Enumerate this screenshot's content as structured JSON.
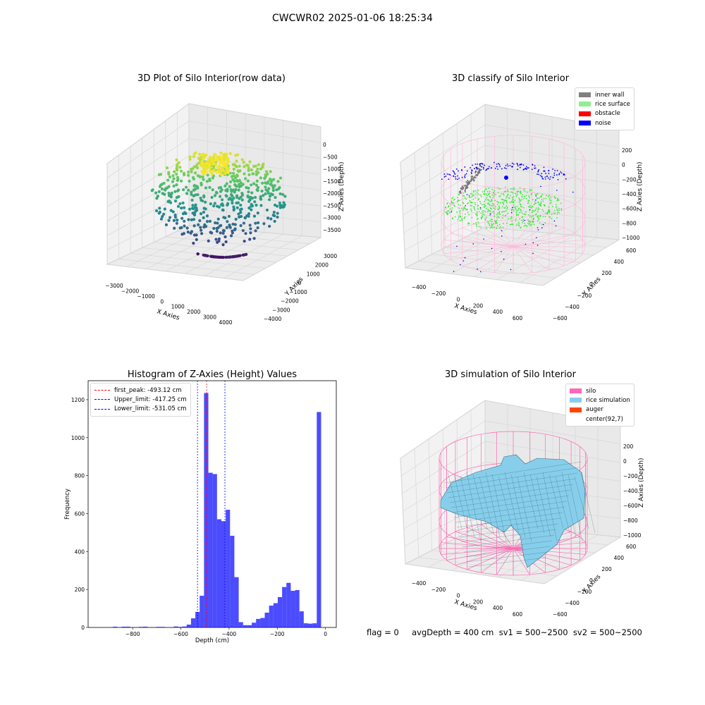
{
  "figure": {
    "suptitle": "CWCWR02 2025-01-06 18:25:34",
    "footer": "flag = 0     avgDepth = 400 cm  sv1 = 500~2500  sv2 = 500~2500"
  },
  "chart_data": [
    {
      "type": "scatter",
      "title": "3D Plot of Silo Interior(row data)",
      "xlabel": "X Axies",
      "ylabel": "Y Axies",
      "zlabel": "Z Axies (Depth)",
      "x_ticks": [
        "−3000",
        "−2000",
        "−1000",
        "0",
        "1000",
        "2000",
        "3000",
        "4000"
      ],
      "y_ticks": [
        "−4000",
        "−3000",
        "−2000",
        "−1000",
        "0",
        "1000",
        "2000",
        "3000"
      ],
      "z_ticks": [
        "0",
        "−500",
        "−1000",
        "−1500",
        "−2000",
        "−2500",
        "−3000",
        "−3500"
      ],
      "colormap": "viridis"
    },
    {
      "type": "scatter",
      "title": "3D classify of Silo Interior",
      "xlabel": "X Axies",
      "ylabel": "Y Axies",
      "zlabel": "Z Axies (Depth)",
      "x_ticks": [
        "−400",
        "−200",
        "0",
        "200",
        "400",
        "600"
      ],
      "y_ticks": [
        "−600",
        "−400",
        "−200",
        "0",
        "200",
        "400",
        "600"
      ],
      "z_ticks": [
        "200",
        "0",
        "−200",
        "−400",
        "−600",
        "−800",
        "−1000"
      ],
      "legend_position": "top-right",
      "legend": [
        {
          "label": "inner wall",
          "color": "#808080"
        },
        {
          "label": "rice surface",
          "color": "#90ee90"
        },
        {
          "label": "obstacle",
          "color": "#ff0000"
        },
        {
          "label": "noise",
          "color": "#0000ff"
        }
      ]
    },
    {
      "type": "bar",
      "title": "Histogram of Z-Axies (Height) Values",
      "xlabel": "Depth (cm)",
      "ylabel": "Frequency",
      "xlim": [
        -985,
        45
      ],
      "ylim": [
        0,
        1300
      ],
      "x_ticks": [
        -800,
        -600,
        -400,
        -200,
        0
      ],
      "x_tick_labels": [
        "−800",
        "−600",
        "−400",
        "−200",
        "0"
      ],
      "y_ticks": [
        0,
        200,
        400,
        600,
        800,
        1000,
        1200
      ],
      "y_tick_labels": [
        "0",
        "200",
        "400",
        "600",
        "800",
        "1000",
        "1200"
      ],
      "bar_color": "#0000ff",
      "bin_width": 18,
      "bins_left": [
        -900,
        -882,
        -864,
        -846,
        -828,
        -810,
        -792,
        -774,
        -756,
        -738,
        -720,
        -702,
        -684,
        -666,
        -648,
        -630,
        -612,
        -594,
        -576,
        -558,
        -540,
        -522,
        -504,
        -486,
        -468,
        -450,
        -432,
        -414,
        -396,
        -378,
        -360,
        -342,
        -324,
        -306,
        -288,
        -270,
        -252,
        -234,
        -216,
        -198,
        -180,
        -162,
        -144,
        -126,
        -108,
        -90,
        -72,
        -54,
        -36,
        -18
      ],
      "values": [
        0,
        4,
        0,
        4,
        4,
        0,
        0,
        3,
        4,
        0,
        0,
        3,
        3,
        0,
        0,
        5,
        3,
        5,
        15,
        48,
        82,
        167,
        1235,
        815,
        808,
        570,
        560,
        620,
        483,
        265,
        28,
        12,
        12,
        25,
        45,
        50,
        78,
        115,
        128,
        160,
        213,
        235,
        193,
        197,
        85,
        22,
        20,
        22,
        1135,
        0
      ],
      "vlines": [
        {
          "label": "first_peak: -493.12 cm",
          "x": -493.12,
          "color": "#ff0000"
        },
        {
          "label": "Upper_limit: -417.25 cm",
          "x": -417.25,
          "color": "#0000ff"
        },
        {
          "label": "Lower_limit: -531.05 cm",
          "x": -531.05,
          "color": "#0000ff"
        }
      ],
      "legend_position": "top-left"
    },
    {
      "type": "surface",
      "title": "3D simulation of Silo Interior",
      "xlabel": "X Axies",
      "ylabel": "Y Axies",
      "zlabel": "Z Axies (Depth)",
      "x_ticks": [
        "−400",
        "−200",
        "0",
        "200",
        "400",
        "600"
      ],
      "y_ticks": [
        "−600",
        "−400",
        "−200",
        "0",
        "200",
        "400",
        "600"
      ],
      "z_ticks": [
        "200",
        "0",
        "−200",
        "−400",
        "−600",
        "−800",
        "−1000"
      ],
      "legend_position": "top-right",
      "legend": [
        {
          "label": "silo",
          "color": "#ff69b4"
        },
        {
          "label": "rice simulation",
          "color": "#87ceeb"
        },
        {
          "label": "auger",
          "color": "#ff4500"
        },
        {
          "label": "center(92,7)",
          "color": "#ffffff"
        }
      ]
    }
  ]
}
